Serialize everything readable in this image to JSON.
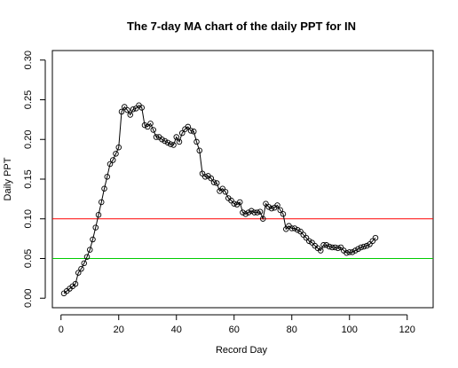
{
  "chart_data": {
    "type": "line",
    "title": "The 7-day MA chart of the daily PPT for IN",
    "xlabel": "Record Day",
    "ylabel": "Daily PPT",
    "xlim": [
      -3,
      129
    ],
    "ylim": [
      -0.012,
      0.312
    ],
    "x_ticks": [
      0,
      20,
      40,
      60,
      80,
      100,
      120
    ],
    "y_ticks": [
      0.0,
      0.05,
      0.1,
      0.15,
      0.2,
      0.25,
      0.3
    ],
    "x_tick_labels": [
      "0",
      "20",
      "40",
      "60",
      "80",
      "100",
      "120"
    ],
    "y_tick_labels": [
      "0.00",
      "0.05",
      "0.10",
      "0.15",
      "0.20",
      "0.25",
      "0.30"
    ],
    "grid": false,
    "marker": "open-circle",
    "series": [
      {
        "color": "#000000",
        "x": [
          1,
          2,
          3,
          4,
          5,
          6,
          7,
          8,
          9,
          10,
          11,
          12,
          13,
          14,
          15,
          16,
          17,
          18,
          19,
          20,
          21,
          22,
          23,
          24,
          25,
          26,
          27,
          28,
          29,
          30,
          31,
          32,
          33,
          34,
          35,
          36,
          37,
          38,
          39,
          40,
          41,
          42,
          43,
          44,
          45,
          46,
          47,
          48,
          49,
          50,
          51,
          52,
          53,
          54,
          55,
          56,
          57,
          58,
          59,
          60,
          61,
          62,
          63,
          64,
          65,
          66,
          67,
          68,
          69,
          70,
          71,
          72,
          73,
          74,
          75,
          76,
          77,
          78,
          79,
          80,
          81,
          82,
          83,
          84,
          85,
          86,
          87,
          88,
          89,
          90,
          91,
          92,
          93,
          94,
          95,
          96,
          97,
          98,
          99,
          100,
          101,
          102,
          103,
          104,
          105,
          106,
          107,
          108,
          109
        ],
        "y": [
          0.006,
          0.009,
          0.012,
          0.015,
          0.018,
          0.032,
          0.037,
          0.044,
          0.052,
          0.061,
          0.074,
          0.089,
          0.105,
          0.121,
          0.138,
          0.153,
          0.169,
          0.174,
          0.182,
          0.19,
          0.235,
          0.241,
          0.237,
          0.231,
          0.238,
          0.239,
          0.243,
          0.24,
          0.218,
          0.216,
          0.22,
          0.212,
          0.203,
          0.203,
          0.2,
          0.198,
          0.196,
          0.194,
          0.193,
          0.203,
          0.197,
          0.208,
          0.213,
          0.216,
          0.211,
          0.21,
          0.197,
          0.186,
          0.157,
          0.153,
          0.154,
          0.151,
          0.146,
          0.145,
          0.135,
          0.138,
          0.134,
          0.126,
          0.123,
          0.119,
          0.118,
          0.121,
          0.108,
          0.106,
          0.108,
          0.11,
          0.108,
          0.108,
          0.109,
          0.1,
          0.119,
          0.115,
          0.113,
          0.114,
          0.117,
          0.111,
          0.106,
          0.087,
          0.091,
          0.088,
          0.088,
          0.086,
          0.084,
          0.08,
          0.076,
          0.072,
          0.07,
          0.066,
          0.063,
          0.06,
          0.067,
          0.067,
          0.065,
          0.064,
          0.064,
          0.063,
          0.064,
          0.06,
          0.057,
          0.058,
          0.058,
          0.06,
          0.062,
          0.064,
          0.065,
          0.066,
          0.068,
          0.072,
          0.076
        ]
      }
    ],
    "reference_lines": [
      {
        "y": 0.1,
        "color": "#ff0000"
      },
      {
        "y": 0.05,
        "color": "#00cc00"
      }
    ]
  }
}
